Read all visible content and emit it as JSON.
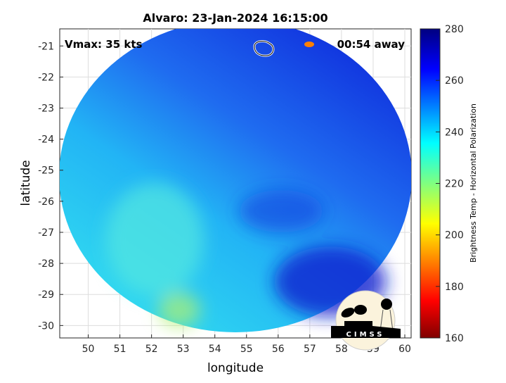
{
  "chart_data": {
    "type": "heatmap",
    "title": "Alvaro: 23-Jan-2024 16:15:00",
    "xlabel": "longitude",
    "ylabel": "latitude",
    "xlim": [
      49.1,
      60.2
    ],
    "ylim": [
      -30.4,
      -20.45
    ],
    "xticks": [
      "50",
      "51",
      "52",
      "53",
      "54",
      "55",
      "56",
      "57",
      "58",
      "59",
      "60"
    ],
    "yticks": [
      "-21",
      "-22",
      "-23",
      "-24",
      "-25",
      "-26",
      "-27",
      "-28",
      "-29",
      "-30"
    ],
    "grid": true,
    "annotations": {
      "vmax": "Vmax: 35 kts",
      "away": "00:54 away"
    },
    "colorbar": {
      "label": "Brightness Temp - Horizontal Polarization",
      "range": [
        160,
        280
      ],
      "ticks": [
        "160",
        "180",
        "200",
        "220",
        "240",
        "260",
        "280"
      ],
      "colormap": "jet"
    },
    "swath": {
      "center_lon": 54.6,
      "center_lat": -25.5,
      "typical_value_range": [
        235,
        270
      ]
    },
    "logo": "CIMSS"
  }
}
